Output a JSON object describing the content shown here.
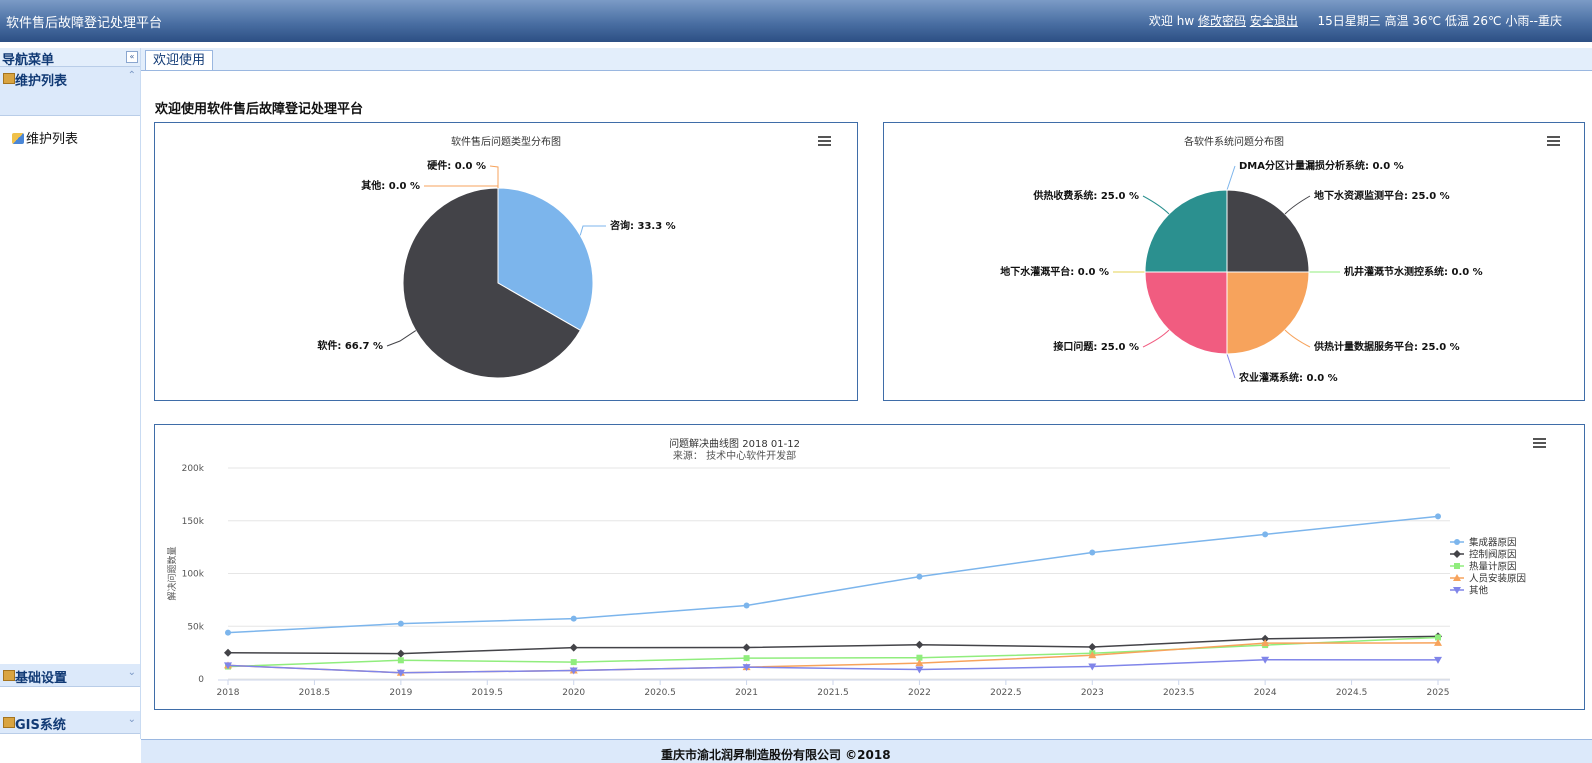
{
  "header": {
    "title": "软件售后故障登记处理平台",
    "welcome": "欢迎 hw",
    "change_password": "修改密码",
    "logout": "安全退出",
    "weather": "15日星期三 高温 36℃ 低温 26℃ 小雨--重庆"
  },
  "sidebar": {
    "title": "导航菜单",
    "collapse_glyph": "«",
    "sections": [
      {
        "label": "维护列表",
        "arrow": "⌃",
        "items": [
          {
            "label": "维护列表"
          }
        ]
      },
      {
        "label": "基础设置",
        "arrow": "⌄"
      },
      {
        "label": "GIS系统",
        "arrow": "⌄"
      }
    ]
  },
  "tabs": [
    {
      "label": "欢迎使用"
    }
  ],
  "main": {
    "heading": "欢迎使用软件售后故障登记处理平台"
  },
  "footer": {
    "text": "重庆市渝北润昇制造股份有限公司 ©2018"
  },
  "chart_data": [
    {
      "type": "pie",
      "title": "软件售后问题类型分布图",
      "slices": [
        {
          "name": "咨询",
          "value": 33.3,
          "color": "#7cb5ec"
        },
        {
          "name": "软件",
          "value": 66.7,
          "color": "#434348"
        },
        {
          "name": "其他",
          "value": 0.0,
          "color": "#f7a35c"
        },
        {
          "name": "硬件",
          "value": 0.0,
          "color": "#f7a35c"
        }
      ]
    },
    {
      "type": "pie",
      "title": "各软件系统问题分布图",
      "slices": [
        {
          "name": "DMA分区计量漏损分析系统",
          "value": 0.0,
          "color": "#7cb5ec"
        },
        {
          "name": "地下水资源监测平台",
          "value": 25.0,
          "color": "#434348"
        },
        {
          "name": "机井灌溉节水测控系统",
          "value": 0.0,
          "color": "#90ed7d"
        },
        {
          "name": "供热计量数据服务平台",
          "value": 25.0,
          "color": "#f7a35c"
        },
        {
          "name": "农业灌溉系统",
          "value": 0.0,
          "color": "#8085e9"
        },
        {
          "name": "接口问题",
          "value": 25.0,
          "color": "#f15c80"
        },
        {
          "name": "地下水灌溉平台",
          "value": 0.0,
          "color": "#e4d354"
        },
        {
          "name": "供热收费系统",
          "value": 25.0,
          "color": "#2b908f"
        }
      ]
    },
    {
      "type": "line",
      "title": "问题解决曲线图 2018 01-12",
      "subtitle": "来源： 技术中心软件开发部",
      "ylabel": "解决问题数量",
      "xlabel": "",
      "xlim": [
        2018,
        2025
      ],
      "ylim": [
        0,
        200000
      ],
      "x_ticks": [
        "2018",
        "2018.5",
        "2019",
        "2019.5",
        "2020",
        "2020.5",
        "2021",
        "2021.5",
        "2022",
        "2022.5",
        "2023",
        "2023.5",
        "2024",
        "2024.5",
        "2025"
      ],
      "y_ticks": [
        "0",
        "50k",
        "100k",
        "150k",
        "200k"
      ],
      "x": [
        2018,
        2019,
        2020,
        2021,
        2022,
        2023,
        2024,
        2025
      ],
      "legend_position": "right",
      "series": [
        {
          "name": "集成器原因",
          "color": "#7cb5ec",
          "marker": "circle",
          "values": [
            43934,
            52503,
            57177,
            69658,
            97031,
            119931,
            137133,
            154175
          ]
        },
        {
          "name": "控制阀原因",
          "color": "#434348",
          "marker": "diamond",
          "values": [
            24916,
            24064,
            29742,
            29851,
            32490,
            30282,
            38121,
            40434
          ]
        },
        {
          "name": "热量计原因",
          "color": "#90ed7d",
          "marker": "square",
          "values": [
            11744,
            17722,
            16005,
            19771,
            20185,
            24377,
            32147,
            39387
          ]
        },
        {
          "name": "人员安装原因",
          "color": "#f7a35c",
          "marker": "triangle",
          "values": [
            12908,
            5948,
            8105,
            11248,
            14989,
            22500,
            34000,
            34227
          ]
        },
        {
          "name": "其他",
          "color": "#8085e9",
          "marker": "triangle-down",
          "values": [
            12908,
            5948,
            8105,
            11248,
            8989,
            11816,
            18274,
            18111
          ]
        }
      ]
    }
  ]
}
